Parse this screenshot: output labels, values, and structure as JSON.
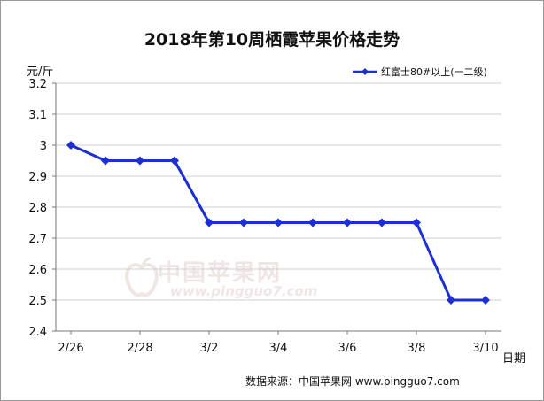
{
  "chart_data": {
    "type": "line",
    "title": "2018年第10周栖霞苹果价格走势",
    "ylabel": "元/斤",
    "xlabel": "日期",
    "x_ticks": [
      "2/26",
      "2/28",
      "3/2",
      "3/4",
      "3/6",
      "3/8",
      "3/10"
    ],
    "y_ticks": [
      "2.4",
      "2.5",
      "2.6",
      "2.7",
      "2.8",
      "2.9",
      "3",
      "3.1",
      "3.2"
    ],
    "ylim": [
      2.4,
      3.2
    ],
    "grid": true,
    "legend_position": "top-right",
    "series": [
      {
        "name": "红富士80#以上(一二级)",
        "color": "#1c2fd4",
        "x": [
          "2/26",
          "2/27",
          "2/28",
          "3/1",
          "3/2",
          "3/3",
          "3/4",
          "3/5",
          "3/6",
          "3/7",
          "3/8",
          "3/9",
          "3/10"
        ],
        "values": [
          3.0,
          2.95,
          2.95,
          2.95,
          2.75,
          2.75,
          2.75,
          2.75,
          2.75,
          2.75,
          2.75,
          2.5,
          2.5
        ]
      }
    ]
  },
  "source_text": "数据来源：中国苹果网 www.pingguo7.com",
  "watermark": {
    "text": "中国苹果网",
    "url": "www.pingguo7.com"
  }
}
